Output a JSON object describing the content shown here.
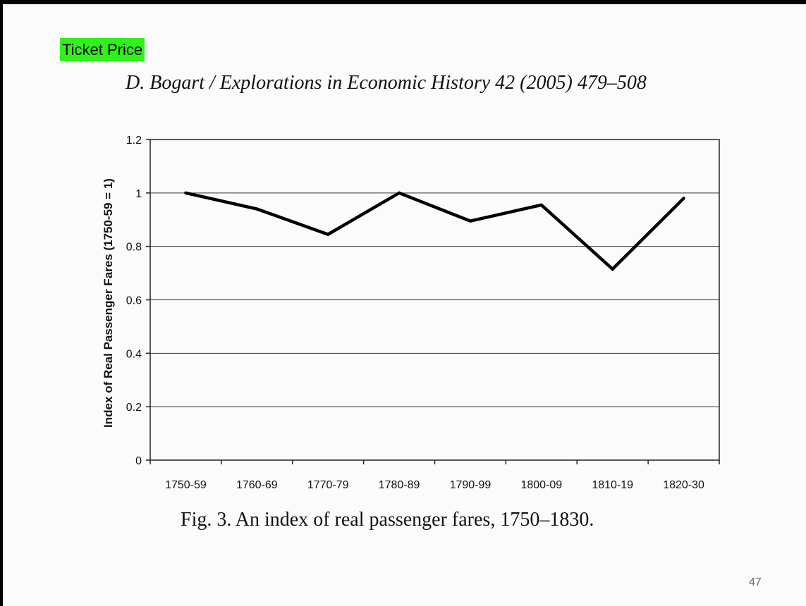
{
  "slide": {
    "highlight_label": "Ticket Price",
    "citation": "D. Bogart / Explorations in Economic History 42 (2005) 479–508",
    "page_number": "47",
    "highlight_color": "#2ef21a"
  },
  "chart_data": {
    "type": "line",
    "title": "",
    "caption": "Fig. 3.  An index of real passenger fares, 1750–1830.",
    "xlabel": "",
    "ylabel": "Index of Real Passenger Fares (1750-59 = 1)",
    "categories": [
      "1750-59",
      "1760-69",
      "1770-79",
      "1780-89",
      "1790-99",
      "1800-09",
      "1810-19",
      "1820-30"
    ],
    "series": [
      {
        "values": [
          1.0,
          0.94,
          0.845,
          1.0,
          0.895,
          0.955,
          0.715,
          0.98
        ]
      }
    ],
    "ylim": [
      0,
      1.2
    ],
    "yticks": [
      "0",
      "0.2",
      "0.4",
      "0.6",
      "0.8",
      "1",
      "1.2"
    ],
    "grid": true,
    "legend": "none",
    "line_color": "#000000"
  }
}
